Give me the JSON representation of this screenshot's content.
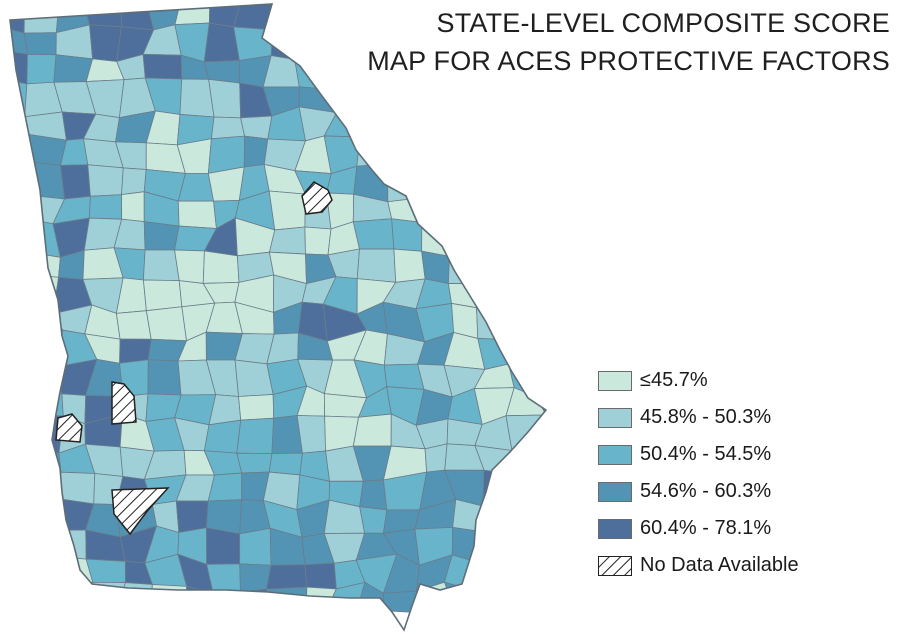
{
  "title": {
    "line1": "STATE-LEVEL COMPOSITE SCORE",
    "line2": "MAP FOR ACES PROTECTIVE FACTORS"
  },
  "colors": {
    "c1": "#cbe8dd",
    "c2": "#9fd0d8",
    "c3": "#68b5cb",
    "c4": "#5394b5",
    "c5": "#4e6f9b",
    "border": "#6a7d8a",
    "nodata": "#ffffff"
  },
  "legend": [
    {
      "label": "≤45.7%",
      "color": "#cbe8dd"
    },
    {
      "label": "45.8% - 50.3%",
      "color": "#9fd0d8"
    },
    {
      "label": "50.4% - 54.5%",
      "color": "#68b5cb"
    },
    {
      "label": "54.6% - 60.3%",
      "color": "#5394b5"
    },
    {
      "label": "60.4% - 78.1%",
      "color": "#4e6f9b"
    },
    {
      "label": "No Data Available",
      "color": "hatch"
    }
  ]
}
